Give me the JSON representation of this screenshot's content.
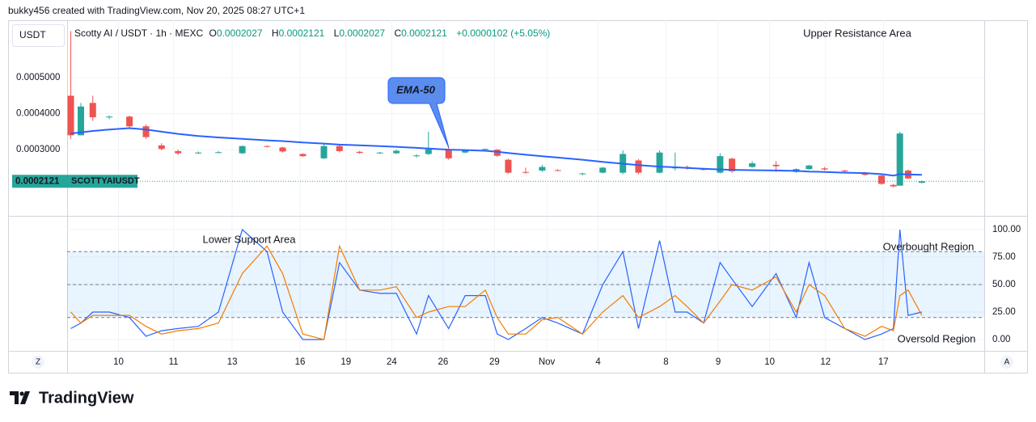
{
  "header": "bukky456 created with TradingView.com, Nov 20, 2025 08:27 UTC+1",
  "currency": "USDT",
  "symbol": "Scotty AI / USDT · 1h · MEXC",
  "ohlc": [
    {
      "label": "O",
      "value": "0.0002027"
    },
    {
      "label": "H",
      "value": "0.0002121"
    },
    {
      "label": "L",
      "value": "0.0002027"
    },
    {
      "label": "C",
      "value": "0.0002121"
    }
  ],
  "change": "+0.0000102 (+5.05%)",
  "buttons": [
    "Z",
    "A"
  ],
  "logo": "TradingView",
  "chart_data": [
    {
      "type": "candlestick",
      "x": [
        0.4,
        1.5,
        2.8,
        4.6,
        6.8,
        8.6,
        10.3,
        12.1,
        14.3,
        16.5,
        19.1,
        21.8,
        23.5,
        25.7,
        28,
        29.7,
        31.9,
        34.1,
        35.9,
        38.1,
        39.4,
        41.6,
        43.4,
        45.6,
        46.9,
        48.1,
        50,
        51.8,
        53.5,
        56.2,
        58.4,
        60.6,
        62.3,
        64.6,
        66.3,
        67.6,
        69.4,
        71.2,
        72.5,
        74.7,
        77.3,
        79.5,
        80.9,
        82.6,
        84.8,
        87,
        88.8,
        90.1,
        90.8,
        91.7,
        93.2
      ],
      "open": [
        0.00045,
        0.00034,
        0.00043,
        0.00039,
        0.000392,
        0.000365,
        0.000312,
        0.000296,
        0.00029,
        0.000292,
        0.00029,
        0.00031,
        0.000306,
        0.000288,
        0.000276,
        0.00031,
        0.000294,
        0.000291,
        0.00029,
        0.000283,
        0.000288,
        0.0003,
        0.000292,
        0.000301,
        0.0003,
        0.000272,
        0.000238,
        0.000242,
        0.000243,
        0.000232,
        0.000236,
        0.000236,
        0.00027,
        0.000236,
        0.000248,
        0.000252,
        0.000246,
        0.000236,
        0.000275,
        0.000252,
        0.000258,
        0.000238,
        0.000246,
        0.000248,
        0.000242,
        0.000236,
        0.000228,
        0.000202,
        0.0002,
        0.000242,
        0.000208
      ],
      "high": [
        0.00063,
        0.00043,
        0.00045,
        0.000395,
        0.000395,
        0.00037,
        0.000318,
        0.0003,
        0.000295,
        0.000296,
        0.000312,
        0.000312,
        0.000308,
        0.00029,
        0.000315,
        0.000316,
        0.000297,
        0.000294,
        0.0003,
        0.000287,
        0.00035,
        0.000305,
        0.000298,
        0.000303,
        0.000302,
        0.000275,
        0.00025,
        0.000258,
        0.000246,
        0.000236,
        0.000252,
        0.000298,
        0.000274,
        0.000298,
        0.000292,
        0.000256,
        0.000249,
        0.00029,
        0.000278,
        0.000268,
        0.000268,
        0.000248,
        0.000258,
        0.000252,
        0.000244,
        0.000238,
        0.00023,
        0.000205,
        0.00035,
        0.000245,
        0.000214
      ],
      "low": [
        0.00033,
        0.00034,
        0.00038,
        0.000385,
        0.00036,
        0.00033,
        0.000298,
        0.000285,
        0.000288,
        0.00029,
        0.000288,
        0.000306,
        0.000292,
        0.00028,
        0.000274,
        0.000292,
        0.000288,
        0.000288,
        0.000288,
        0.000278,
        0.000285,
        0.000272,
        0.00029,
        0.000298,
        0.00028,
        0.000233,
        0.000233,
        0.000238,
        0.00024,
        0.000229,
        0.000234,
        0.000232,
        0.000232,
        0.000234,
        0.000242,
        0.000245,
        0.000242,
        0.000234,
        0.000236,
        0.00025,
        0.000238,
        0.000236,
        0.000244,
        0.000242,
        0.000238,
        0.000228,
        0.000202,
        0.000195,
        0.0002,
        0.000218,
        0.000206
      ],
      "close": [
        0.00034,
        0.00042,
        0.00039,
        0.000392,
        0.000365,
        0.000335,
        0.000302,
        0.00029,
        0.000292,
        0.000293,
        0.00031,
        0.000308,
        0.000295,
        0.000282,
        0.00031,
        0.000296,
        0.000291,
        0.000292,
        0.000297,
        0.000284,
        0.000301,
        0.000276,
        0.000297,
        0.000302,
        0.000283,
        0.000236,
        0.000236,
        0.000252,
        0.000242,
        0.000234,
        0.00025,
        0.000288,
        0.000236,
        0.000292,
        0.000252,
        0.000249,
        0.000245,
        0.000282,
        0.00024,
        0.000262,
        0.000254,
        0.000246,
        0.000256,
        0.000245,
        0.00024,
        0.00023,
        0.000205,
        0.000198,
        0.000345,
        0.00022,
        0.0002121
      ],
      "up_color": "#26a69a",
      "down_color": "#ef5350",
      "lines": [
        {
          "name": "EMA-50",
          "color": "#2962ff",
          "values": [
            0.000345,
            0.000348,
            0.000352,
            0.000356,
            0.00036,
            0.000356,
            0.00035,
            0.000344,
            0.000338,
            0.000334,
            0.00033,
            0.000326,
            0.000324,
            0.00032,
            0.000317,
            0.000314,
            0.000312,
            0.00031,
            0.000308,
            0.000305,
            0.000303,
            0.0003,
            0.000299,
            0.000297,
            0.000294,
            0.000291,
            0.000286,
            0.000282,
            0.000278,
            0.000272,
            0.000266,
            0.000261,
            0.000257,
            0.000253,
            0.000251,
            0.000249,
            0.000247,
            0.000245,
            0.000244,
            0.000243,
            0.000242,
            0.000241,
            0.000239,
            0.000238,
            0.000236,
            0.000235,
            0.000232,
            0.000228,
            0.000232,
            0.000231,
            0.00023
          ]
        }
      ],
      "xlim": [
        0,
        100
      ],
      "ylim": [
        0.000116,
        0.00066
      ],
      "yticks": [
        {
          "value": 0.0005,
          "label": "0.0005000"
        },
        {
          "value": 0.0004,
          "label": "0.0004000"
        },
        {
          "value": 0.0003,
          "label": "0.0003000"
        }
      ],
      "grid": true,
      "last_price": 0.0002121,
      "last_price_symbol": "SCOTTYAIUSDT",
      "annotations": [
        "Upper Resistance Area"
      ]
    },
    {
      "type": "line",
      "x": [
        0.4,
        1.5,
        2.8,
        4.6,
        6.8,
        8.6,
        10.3,
        12.1,
        14.3,
        16.5,
        19.1,
        21.8,
        23.5,
        25.7,
        28,
        29.7,
        31.9,
        34.1,
        35.9,
        38.1,
        39.4,
        41.6,
        43.4,
        45.6,
        46.9,
        48.1,
        50,
        51.8,
        53.5,
        56.2,
        58.4,
        60.6,
        62.3,
        64.6,
        66.3,
        67.6,
        69.4,
        71.2,
        72.5,
        74.7,
        77.3,
        79.5,
        80.9,
        82.6,
        84.8,
        87,
        88.8,
        90.1,
        90.8,
        91.7,
        93.2
      ],
      "series": [
        {
          "color": "#2962ff",
          "values": [
            10,
            15,
            25,
            25,
            20,
            3,
            8,
            10,
            12,
            25,
            100,
            80,
            25,
            0,
            0,
            70,
            45,
            42,
            42,
            5,
            40,
            10,
            40,
            40,
            5,
            0,
            10,
            20,
            15,
            5,
            50,
            80,
            10,
            90,
            25,
            25,
            15,
            70,
            55,
            30,
            60,
            20,
            70,
            20,
            10,
            0,
            5,
            10,
            100,
            22,
            25
          ]
        },
        {
          "color": "#f57c00",
          "values": [
            25,
            15,
            22,
            22,
            22,
            12,
            5,
            8,
            10,
            15,
            60,
            85,
            60,
            5,
            0,
            85,
            45,
            45,
            48,
            20,
            25,
            30,
            30,
            45,
            20,
            5,
            5,
            18,
            20,
            5,
            25,
            40,
            20,
            30,
            40,
            30,
            15,
            35,
            50,
            45,
            57,
            25,
            50,
            40,
            10,
            3,
            12,
            8,
            40,
            45,
            22
          ]
        }
      ],
      "levels": [
        80,
        50,
        20
      ],
      "band_color": "#2196f3",
      "xlim": [
        0,
        100
      ],
      "ylim": [
        -10.3,
        111.8
      ],
      "xticks": [
        {
          "value": 5.6,
          "label": "10"
        },
        {
          "value": 11.6,
          "label": "11"
        },
        {
          "value": 18,
          "label": "13"
        },
        {
          "value": 25.4,
          "label": "16"
        },
        {
          "value": 30.4,
          "label": "19"
        },
        {
          "value": 35.4,
          "label": "24"
        },
        {
          "value": 41,
          "label": "26"
        },
        {
          "value": 46.6,
          "label": "29"
        },
        {
          "value": 52.3,
          "label": "Nov"
        },
        {
          "value": 57.9,
          "label": "4"
        },
        {
          "value": 65.3,
          "label": "8"
        },
        {
          "value": 71,
          "label": "9"
        },
        {
          "value": 76.6,
          "label": "10"
        },
        {
          "value": 82.7,
          "label": "12"
        },
        {
          "value": 89,
          "label": "17"
        }
      ],
      "yticks": [
        {
          "value": 100,
          "label": "100.00"
        },
        {
          "value": 75,
          "label": "75.00"
        },
        {
          "value": 50,
          "label": "50.00"
        },
        {
          "value": 25,
          "label": "25.00"
        },
        {
          "value": 0,
          "label": "0.00"
        }
      ],
      "grid": true,
      "annotations": [
        "Lower Support Area",
        "Overbought Region",
        "Oversold Region"
      ]
    }
  ]
}
